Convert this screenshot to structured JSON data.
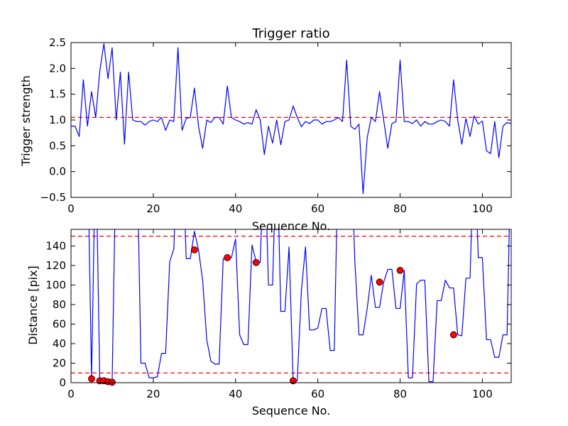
{
  "chart_data": [
    {
      "type": "line",
      "title": "Trigger ratio",
      "xlabel": "Sequence No.",
      "ylabel": "Trigger strength",
      "xlim": [
        0,
        107
      ],
      "ylim": [
        -0.5,
        2.5
      ],
      "xticks": [
        "0",
        "20",
        "40",
        "60",
        "80",
        "100"
      ],
      "yticks": [
        "−0.5",
        "0.0",
        "0.5",
        "1.0",
        "1.5",
        "2.0",
        "2.5"
      ],
      "grid": false,
      "line_color": "#0000ff",
      "threshold_color": "#ff0000",
      "thresholds": [
        1.05
      ],
      "x": [
        0,
        1,
        2,
        3,
        4,
        5,
        6,
        7,
        8,
        9,
        10,
        11,
        12,
        13,
        14,
        15,
        16,
        17,
        18,
        19,
        20,
        21,
        22,
        23,
        24,
        25,
        26,
        27,
        28,
        29,
        30,
        31,
        32,
        33,
        34,
        35,
        36,
        37,
        38,
        39,
        40,
        41,
        42,
        43,
        44,
        45,
        46,
        47,
        48,
        49,
        50,
        51,
        52,
        53,
        54,
        55,
        56,
        57,
        58,
        59,
        60,
        61,
        62,
        63,
        64,
        65,
        66,
        67,
        68,
        69,
        70,
        71,
        72,
        73,
        74,
        75,
        76,
        77,
        78,
        79,
        80,
        81,
        82,
        83,
        84,
        85,
        86,
        87,
        88,
        89,
        90,
        91,
        92,
        93,
        94,
        95,
        96,
        97,
        98,
        99,
        100,
        101,
        102,
        103,
        104,
        105,
        106,
        107
      ],
      "values": [
        0.88,
        0.88,
        0.68,
        1.78,
        0.88,
        1.55,
        1.05,
        1.95,
        2.48,
        1.8,
        2.4,
        1.0,
        1.93,
        0.53,
        1.93,
        1.0,
        0.97,
        0.97,
        0.9,
        0.97,
        1.0,
        0.97,
        1.05,
        0.8,
        1.0,
        0.97,
        2.4,
        0.8,
        1.03,
        1.05,
        1.62,
        0.88,
        0.45,
        1.0,
        0.95,
        1.05,
        1.05,
        0.92,
        1.66,
        1.05,
        1.0,
        0.97,
        0.92,
        0.95,
        0.92,
        1.2,
        1.0,
        0.33,
        0.88,
        0.55,
        1.0,
        0.52,
        0.97,
        1.0,
        1.27,
        1.05,
        0.87,
        0.97,
        0.93,
        1.0,
        1.0,
        0.92,
        0.97,
        0.97,
        1.0,
        1.05,
        0.97,
        2.16,
        0.88,
        0.82,
        0.92,
        -0.43,
        0.66,
        1.05,
        0.97,
        1.55,
        1.0,
        0.45,
        0.93,
        0.97,
        2.16,
        0.97,
        0.97,
        0.93,
        1.0,
        0.88,
        0.97,
        0.92,
        0.92,
        0.97,
        1.0,
        0.97,
        0.88,
        1.78,
        1.0,
        0.53,
        1.03,
        0.68,
        1.08,
        0.92,
        0.98,
        0.4,
        0.35,
        0.97,
        0.27,
        0.88,
        0.95,
        0.93
      ]
    },
    {
      "type": "line",
      "title": "",
      "xlabel": "Sequence No.",
      "ylabel": "Distance [pix]",
      "xlim": [
        0,
        107
      ],
      "ylim": [
        0,
        157
      ],
      "xticks": [
        "0",
        "20",
        "40",
        "60",
        "80",
        "100"
      ],
      "yticks": [
        "0",
        "20",
        "40",
        "60",
        "80",
        "100",
        "120",
        "140"
      ],
      "grid": false,
      "line_color": "#0000ff",
      "threshold_color": "#ff0000",
      "marker_color": "#ff0000",
      "thresholds": [
        10,
        150
      ],
      "x": [
        0,
        1,
        2,
        3,
        4,
        5,
        6,
        7,
        8,
        9,
        10,
        11,
        12,
        13,
        14,
        15,
        16,
        17,
        18,
        19,
        20,
        21,
        22,
        23,
        24,
        25,
        26,
        27,
        28,
        29,
        30,
        31,
        32,
        33,
        34,
        35,
        36,
        37,
        38,
        39,
        40,
        41,
        42,
        43,
        44,
        45,
        46,
        47,
        48,
        49,
        50,
        51,
        52,
        53,
        54,
        55,
        56,
        57,
        58,
        59,
        60,
        61,
        62,
        63,
        64,
        65,
        66,
        67,
        68,
        69,
        70,
        71,
        72,
        73,
        74,
        75,
        76,
        77,
        78,
        79,
        80,
        81,
        82,
        83,
        84,
        85,
        86,
        87,
        88,
        89,
        90,
        91,
        92,
        93,
        94,
        95,
        96,
        97,
        98,
        99,
        100,
        101,
        102,
        103,
        104,
        105,
        106,
        107
      ],
      "values": [
        null,
        null,
        null,
        null,
        null,
        4,
        null,
        2,
        2,
        1,
        0.5,
        null,
        null,
        null,
        null,
        null,
        null,
        20,
        20,
        5,
        5,
        6,
        30,
        30,
        124,
        137,
        null,
        null,
        127,
        127,
        155,
        136,
        105,
        44,
        22,
        19,
        19,
        127,
        127,
        128,
        147,
        49,
        39,
        39,
        141,
        124,
        123,
        null,
        100,
        100,
        null,
        73,
        73,
        139,
        2,
        2,
        94,
        139,
        54,
        54,
        56,
        76,
        76,
        33,
        33,
        null,
        null,
        null,
        null,
        124,
        49,
        49,
        76,
        110,
        77,
        77,
        103,
        116,
        116,
        76,
        76,
        115,
        5,
        5,
        101,
        105,
        105,
        1,
        1,
        84,
        84,
        105,
        97,
        97,
        49,
        48,
        107,
        107,
        null,
        128,
        128,
        44,
        44,
        26,
        26,
        49,
        49,
        null
      ],
      "marker_x": [
        5,
        7,
        8,
        9,
        10,
        30,
        38,
        45,
        54,
        75,
        80,
        93
      ],
      "marker_y": [
        4,
        2,
        2,
        1,
        0.5,
        136,
        128,
        123,
        2,
        103,
        115,
        49
      ]
    }
  ]
}
